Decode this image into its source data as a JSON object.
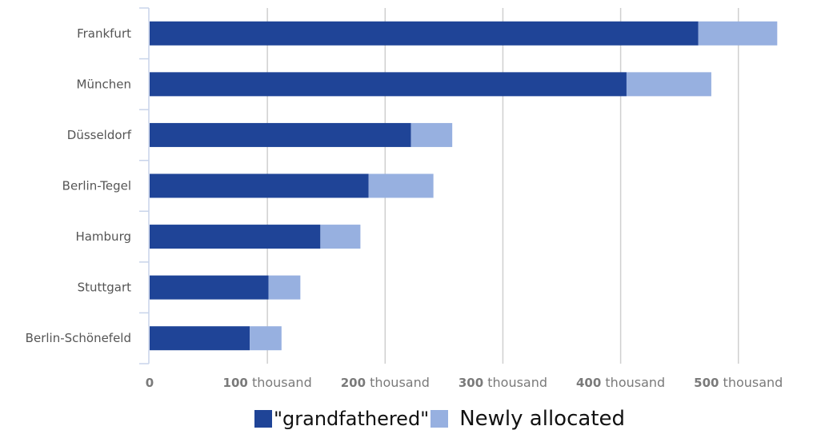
{
  "chart_data": {
    "type": "bar",
    "orientation": "horizontal",
    "stacked": true,
    "categories": [
      "Frankfurt",
      "München",
      "Düsseldorf",
      "Berlin-Tegel",
      "Hamburg",
      "Stuttgart",
      "Berlin-Schönefeld"
    ],
    "series": [
      {
        "name": "\"grandfathered\"",
        "color": "#1f4497",
        "values": [
          466,
          405,
          222,
          186,
          145,
          101,
          85
        ]
      },
      {
        "name": "Newly allocated",
        "color": "#97b0e0",
        "values": [
          67,
          72,
          35,
          55,
          34,
          27,
          27
        ]
      }
    ],
    "x_ticks": [
      {
        "value": 0,
        "num": "0",
        "unit": ""
      },
      {
        "value": 100,
        "num": "100",
        "unit": "thousand"
      },
      {
        "value": 200,
        "num": "200",
        "unit": "thousand"
      },
      {
        "value": 300,
        "num": "300",
        "unit": "thousand"
      },
      {
        "value": 400,
        "num": "400",
        "unit": "thousand"
      },
      {
        "value": 500,
        "num": "500",
        "unit": "thousand"
      }
    ],
    "xlim": [
      0,
      540
    ],
    "grid": true,
    "legend_position": "bottom-center"
  }
}
